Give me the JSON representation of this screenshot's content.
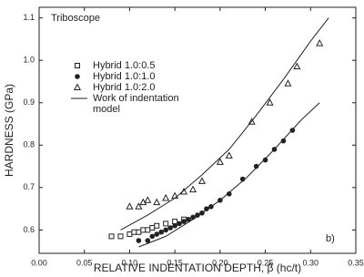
{
  "chart_data": {
    "type": "scatter",
    "x_label": "RELATIVE INDENTATION DEPTH, β (hc/t)",
    "y_label": "HARDNESS (GPa)",
    "annotations": [
      "Triboscope",
      "b)"
    ],
    "xlim": [
      0,
      0.35
    ],
    "xticks": [
      {
        "value": 0,
        "label": "0.00"
      },
      {
        "value": 0.05,
        "label": "0.05"
      },
      {
        "value": 0.1,
        "label": "0.10"
      },
      {
        "value": 0.15,
        "label": "0.15"
      },
      {
        "value": 0.2,
        "label": "0.20"
      },
      {
        "value": 0.25,
        "label": "0.25"
      },
      {
        "value": 0.3,
        "label": "0.30"
      },
      {
        "value": 0.35,
        "label": "0.35"
      }
    ],
    "ylim": [
      0.545,
      1.125
    ],
    "yticks": [
      0.6,
      0.7,
      0.8,
      0.9,
      {
        "value": 1.0,
        "label": "1.0"
      },
      1.1
    ],
    "series": [
      {
        "name": "Hybrid 1.0:0.5",
        "marker": "square",
        "color": "#222",
        "x": [
          0.08,
          0.09,
          0.1,
          0.105,
          0.11,
          0.115,
          0.12,
          0.125,
          0.13,
          0.14,
          0.15,
          0.16
        ],
        "values": [
          0.585,
          0.585,
          0.59,
          0.595,
          0.595,
          0.6,
          0.6,
          0.605,
          0.61,
          0.615,
          0.62,
          0.625
        ]
      },
      {
        "name": "Hybrid 1.0:1.0",
        "marker": "circle",
        "color": "#222",
        "x": [
          0.11,
          0.12,
          0.125,
          0.13,
          0.135,
          0.14,
          0.145,
          0.15,
          0.155,
          0.16,
          0.165,
          0.17,
          0.175,
          0.18,
          0.185,
          0.19,
          0.2,
          0.21,
          0.225,
          0.24,
          0.25,
          0.26,
          0.27,
          0.28
        ],
        "values": [
          0.575,
          0.575,
          0.585,
          0.59,
          0.595,
          0.6,
          0.605,
          0.61,
          0.615,
          0.62,
          0.625,
          0.63,
          0.635,
          0.64,
          0.65,
          0.655,
          0.67,
          0.685,
          0.72,
          0.75,
          0.765,
          0.79,
          0.81,
          0.835
        ]
      },
      {
        "name": "Hybrid 1.0:2.0",
        "marker": "triangle",
        "color": "#222",
        "x": [
          0.1,
          0.11,
          0.115,
          0.12,
          0.13,
          0.14,
          0.15,
          0.16,
          0.17,
          0.18,
          0.2,
          0.21,
          0.235,
          0.255,
          0.275,
          0.285,
          0.31
        ],
        "values": [
          0.655,
          0.655,
          0.665,
          0.67,
          0.665,
          0.675,
          0.68,
          0.69,
          0.695,
          0.715,
          0.76,
          0.775,
          0.855,
          0.9,
          0.945,
          0.985,
          1.04
        ]
      },
      {
        "name": "Work of indentation model",
        "marker": "line",
        "color": "#222",
        "x": [
          0.09,
          0.12,
          0.15,
          0.18,
          0.21,
          0.24,
          0.27,
          0.3,
          0.32,
          null,
          0.11,
          0.14,
          0.17,
          0.2,
          0.23,
          0.26,
          0.29,
          0.31
        ],
        "values": [
          0.6,
          0.635,
          0.675,
          0.73,
          0.79,
          0.87,
          0.955,
          1.045,
          1.1,
          null,
          0.56,
          0.585,
          0.625,
          0.67,
          0.725,
          0.79,
          0.86,
          0.9
        ]
      }
    ]
  }
}
